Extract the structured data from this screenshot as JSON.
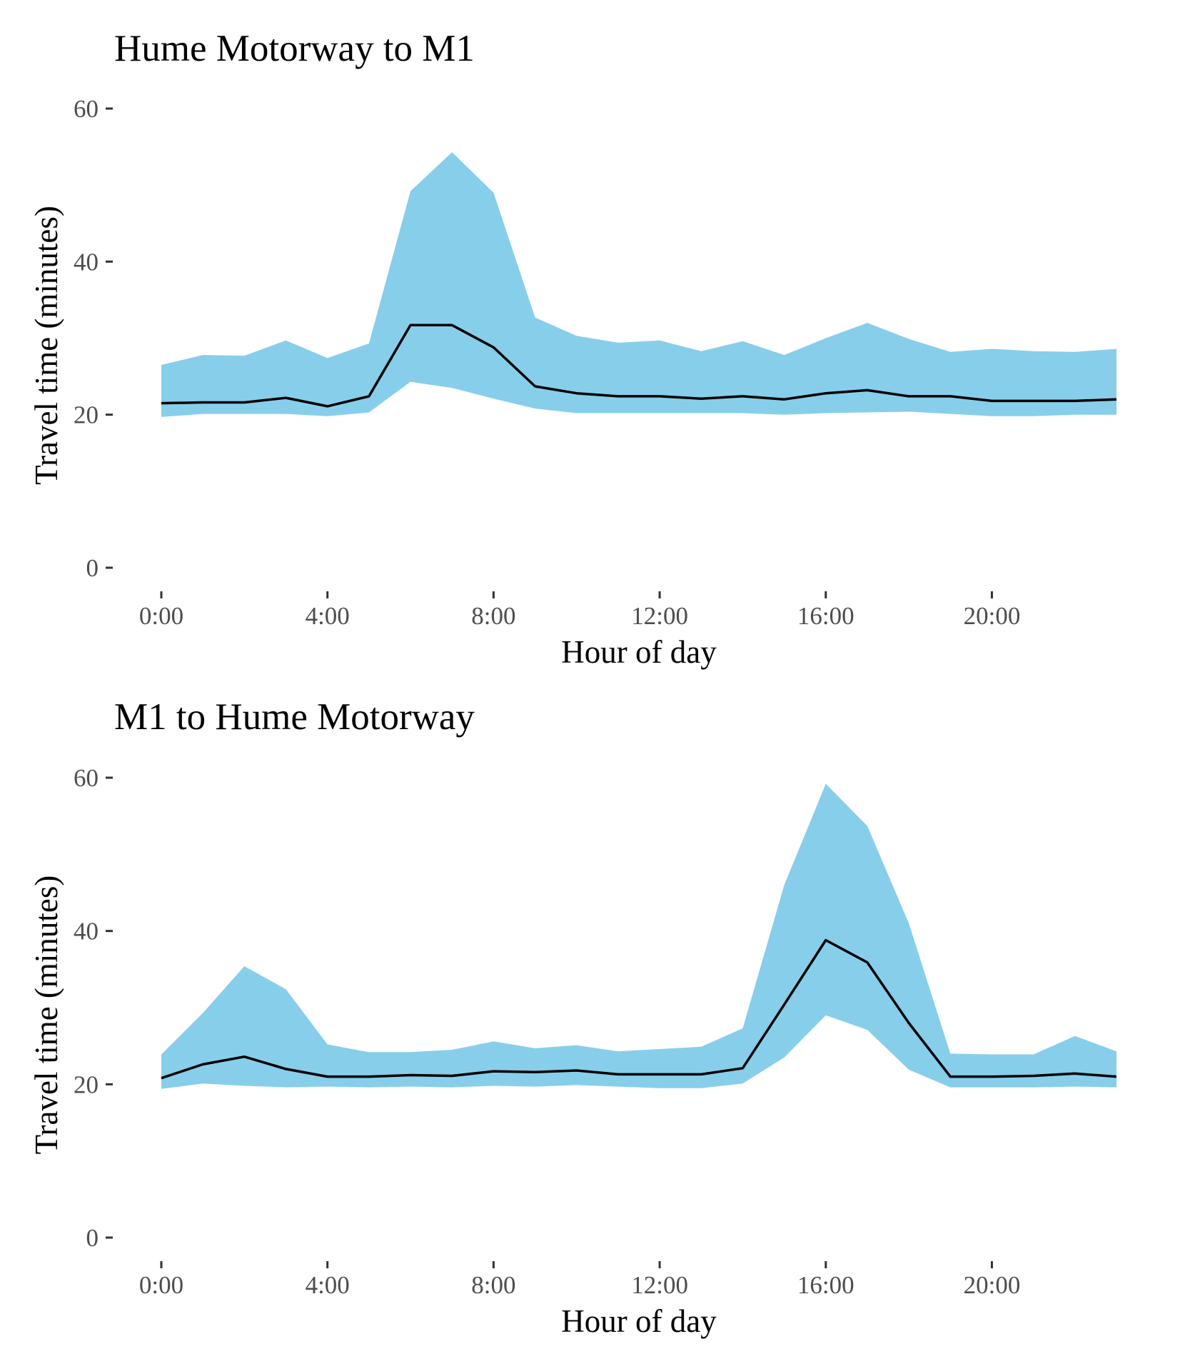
{
  "chart_data": [
    {
      "type": "area",
      "title": "Hume Motorway to M1",
      "xlabel": "Hour of day",
      "ylabel": "Travel time (minutes)",
      "xlim": [
        0,
        23
      ],
      "ylim": [
        0,
        60
      ],
      "x_ticks": [
        0,
        4,
        8,
        12,
        16,
        20
      ],
      "x_tick_labels": [
        "0:00",
        "4:00",
        "8:00",
        "12:00",
        "16:00",
        "20:00"
      ],
      "y_ticks": [
        0,
        20,
        40,
        60
      ],
      "y_tick_labels": [
        "0",
        "20",
        "40",
        "60"
      ],
      "grid": false,
      "ribbon_color": "#87CEEB",
      "line_color": "#000000",
      "x": [
        0,
        1,
        2,
        3,
        4,
        5,
        6,
        7,
        8,
        9,
        10,
        11,
        12,
        13,
        14,
        15,
        16,
        17,
        18,
        19,
        20,
        21,
        22,
        23
      ],
      "series": [
        {
          "role": "ribbon_upper",
          "values": [
            26.5,
            27.8,
            27.7,
            29.7,
            27.4,
            29.3,
            49.2,
            54.3,
            49.0,
            32.7,
            30.3,
            29.4,
            29.7,
            28.3,
            29.6,
            27.8,
            30.0,
            32.0,
            29.9,
            28.2,
            28.6,
            28.3,
            28.2,
            28.6
          ]
        },
        {
          "role": "line",
          "values": [
            21.5,
            21.6,
            21.6,
            22.2,
            21.1,
            22.4,
            31.7,
            31.7,
            28.8,
            23.7,
            22.8,
            22.4,
            22.4,
            22.1,
            22.4,
            22.0,
            22.8,
            23.2,
            22.4,
            22.4,
            21.8,
            21.8,
            21.8,
            22.0
          ]
        },
        {
          "role": "ribbon_lower",
          "values": [
            19.7,
            20.1,
            20.1,
            20.1,
            19.8,
            20.3,
            24.3,
            23.5,
            22.1,
            20.8,
            20.2,
            20.2,
            20.2,
            20.2,
            20.2,
            20.0,
            20.2,
            20.3,
            20.4,
            20.1,
            19.8,
            19.8,
            20.0,
            20.0
          ]
        }
      ]
    },
    {
      "type": "area",
      "title": "M1 to Hume Motorway",
      "xlabel": "Hour of day",
      "ylabel": "Travel time (minutes)",
      "xlim": [
        0,
        23
      ],
      "ylim": [
        0,
        60
      ],
      "x_ticks": [
        0,
        4,
        8,
        12,
        16,
        20
      ],
      "x_tick_labels": [
        "0:00",
        "4:00",
        "8:00",
        "12:00",
        "16:00",
        "20:00"
      ],
      "y_ticks": [
        0,
        20,
        40,
        60
      ],
      "y_tick_labels": [
        "0",
        "20",
        "40",
        "60"
      ],
      "grid": false,
      "ribbon_color": "#87CEEB",
      "line_color": "#000000",
      "x": [
        0,
        1,
        2,
        3,
        4,
        5,
        6,
        7,
        8,
        9,
        10,
        11,
        12,
        13,
        14,
        15,
        16,
        17,
        18,
        19,
        20,
        21,
        22,
        23
      ],
      "series": [
        {
          "role": "ribbon_upper",
          "values": [
            23.9,
            29.3,
            35.4,
            32.4,
            25.2,
            24.2,
            24.2,
            24.5,
            25.6,
            24.7,
            25.1,
            24.3,
            24.6,
            24.9,
            27.3,
            46.0,
            59.2,
            53.7,
            41.0,
            24.0,
            23.9,
            23.9,
            26.3,
            24.3
          ]
        },
        {
          "role": "line",
          "values": [
            20.8,
            22.6,
            23.6,
            22.0,
            21.0,
            21.0,
            21.2,
            21.1,
            21.7,
            21.6,
            21.8,
            21.3,
            21.3,
            21.3,
            22.1,
            30.4,
            38.8,
            35.9,
            28.0,
            21.0,
            21.0,
            21.1,
            21.4,
            21.0
          ]
        },
        {
          "role": "ribbon_lower",
          "values": [
            19.4,
            20.1,
            19.8,
            19.6,
            19.7,
            19.6,
            19.7,
            19.6,
            19.8,
            19.7,
            19.9,
            19.7,
            19.5,
            19.5,
            20.1,
            23.5,
            29.0,
            27.1,
            21.9,
            19.6,
            19.6,
            19.6,
            19.7,
            19.6
          ]
        }
      ]
    }
  ]
}
